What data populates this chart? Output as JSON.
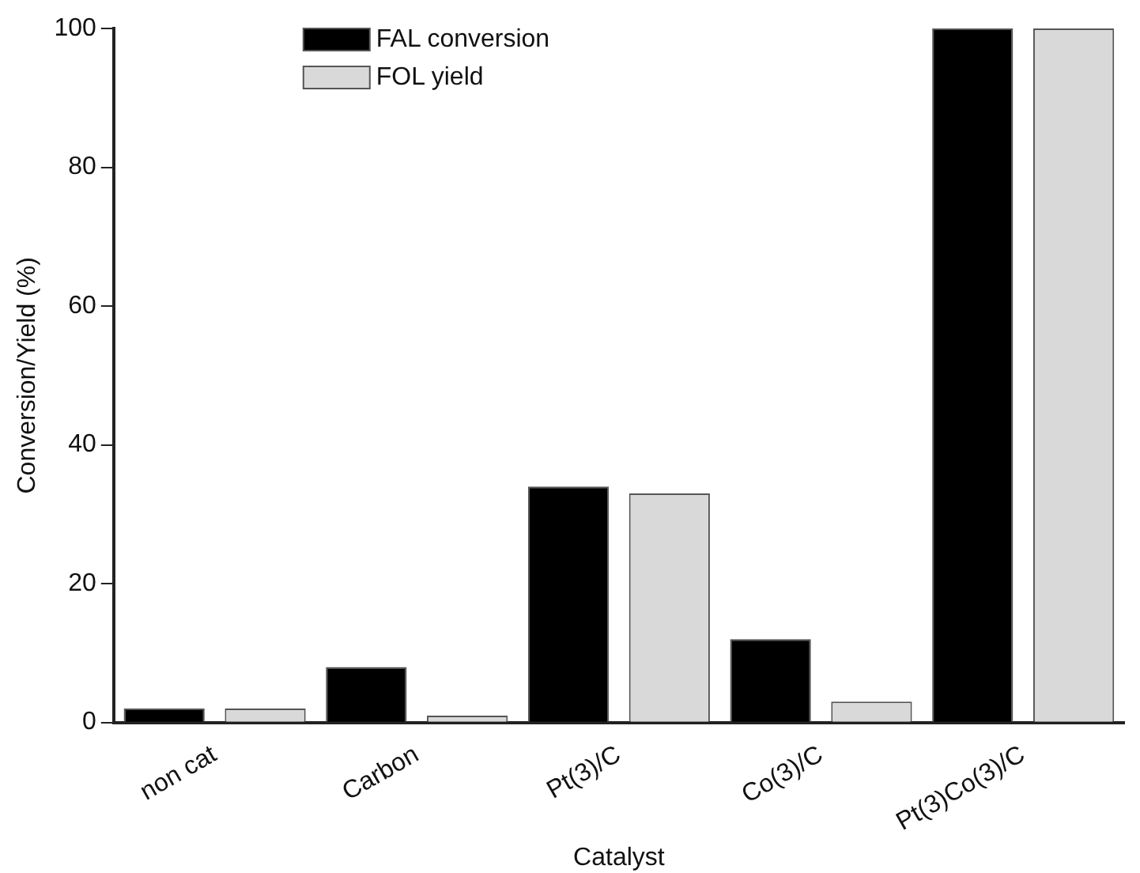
{
  "chart_data": {
    "type": "bar",
    "xlabel": "Catalyst",
    "ylabel": "Conversion/Yield (%)",
    "categories": [
      "non cat",
      "Carbon",
      "Pt(3)/C",
      "Co(3)/C",
      "Pt(3)Co(3)/C"
    ],
    "series": [
      {
        "name": "FAL conversion",
        "color": "#000000",
        "values": [
          2,
          8,
          34,
          12,
          100
        ]
      },
      {
        "name": "FOL yield",
        "color": "#d9d9d9",
        "values": [
          2,
          1,
          33,
          3,
          100
        ]
      }
    ],
    "ylim": [
      0,
      100
    ],
    "yticks": [
      0,
      20,
      40,
      60,
      80,
      100
    ],
    "grid": false,
    "legend": "top left"
  }
}
